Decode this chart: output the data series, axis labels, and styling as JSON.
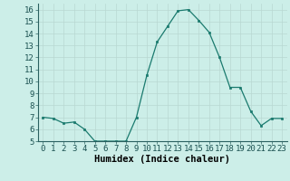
{
  "x": [
    0,
    1,
    2,
    3,
    4,
    5,
    6,
    7,
    8,
    9,
    10,
    11,
    12,
    13,
    14,
    15,
    16,
    17,
    18,
    19,
    20,
    21,
    22,
    23
  ],
  "y": [
    7,
    6.9,
    6.5,
    6.6,
    6.0,
    5.0,
    5.0,
    5.0,
    5.0,
    7.0,
    10.5,
    13.3,
    14.6,
    15.9,
    16.0,
    15.1,
    14.1,
    12.0,
    9.5,
    9.5,
    7.5,
    6.3,
    6.9,
    6.9
  ],
  "line_color": "#1a7a6e",
  "marker_color": "#1a7a6e",
  "bg_color": "#cceee8",
  "grid_color": "#b8d8d2",
  "xlabel": "Humidex (Indice chaleur)",
  "ylim": [
    5,
    16.5
  ],
  "xlim": [
    -0.5,
    23.5
  ],
  "yticks": [
    5,
    6,
    7,
    8,
    9,
    10,
    11,
    12,
    13,
    14,
    15,
    16
  ],
  "xticks": [
    0,
    1,
    2,
    3,
    4,
    5,
    6,
    7,
    8,
    9,
    10,
    11,
    12,
    13,
    14,
    15,
    16,
    17,
    18,
    19,
    20,
    21,
    22,
    23
  ],
  "xtick_labels": [
    "0",
    "1",
    "2",
    "3",
    "4",
    "5",
    "6",
    "7",
    "8",
    "9",
    "10",
    "11",
    "12",
    "13",
    "14",
    "15",
    "16",
    "17",
    "18",
    "19",
    "20",
    "21",
    "22",
    "23"
  ],
  "font_size": 6.5,
  "label_font_size": 7.5
}
